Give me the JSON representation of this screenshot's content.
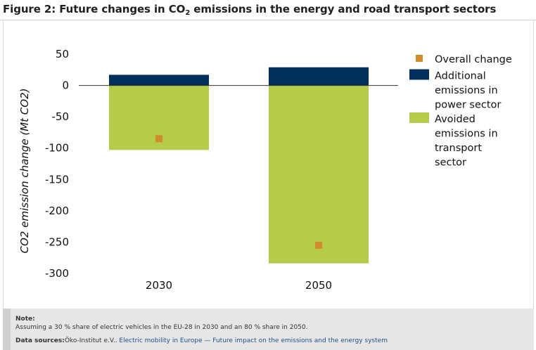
{
  "figure": {
    "title_prefix": "Figure 2: Future changes in CO",
    "title_sub": "2",
    "title_suffix": " emissions in the energy and road transport sectors"
  },
  "chart_data": {
    "type": "bar",
    "stacked": true,
    "categories": [
      "2030",
      "2050"
    ],
    "series": [
      {
        "name": "Additional emissions in power sector",
        "values": [
          17,
          29
        ],
        "color": "#002f5c"
      },
      {
        "name": "Avoided emissions in transport sector",
        "values": [
          -103,
          -284
        ],
        "color": "#b5cc4a"
      }
    ],
    "markers": {
      "name": "Overall change",
      "values": [
        -85,
        -255
      ],
      "color": "#d38a2b"
    },
    "ylabel": "CO2 emission change (Mt CO2)",
    "yticks": [
      50,
      0,
      -50,
      -100,
      -150,
      -200,
      -250,
      -300
    ],
    "ylim": [
      -300,
      50
    ],
    "legend_position": "right",
    "zero_line": true,
    "grid": false
  },
  "legend": {
    "items": [
      {
        "lines": [
          "Overall change"
        ],
        "marker": "square-small",
        "color": "#d38a2b"
      },
      {
        "lines": [
          "Additional",
          "emissions in",
          "power sector"
        ],
        "marker": "rect",
        "color": "#002f5c"
      },
      {
        "lines": [
          "Avoided",
          "emissions in",
          "transport",
          "sector"
        ],
        "marker": "rect",
        "color": "#b5cc4a"
      }
    ]
  },
  "notes": {
    "note_label": "Note:",
    "note_text": "Assuming a 30 % share of electric vehicles in the EU-28 in 2030 and an 80 % share in 2050.",
    "sources_label": "Data sources:",
    "sources_org": "Öko-Institut e.V.. ",
    "sources_link": "Electric mobility in Europe — Future impact on the emissions and the energy system"
  }
}
